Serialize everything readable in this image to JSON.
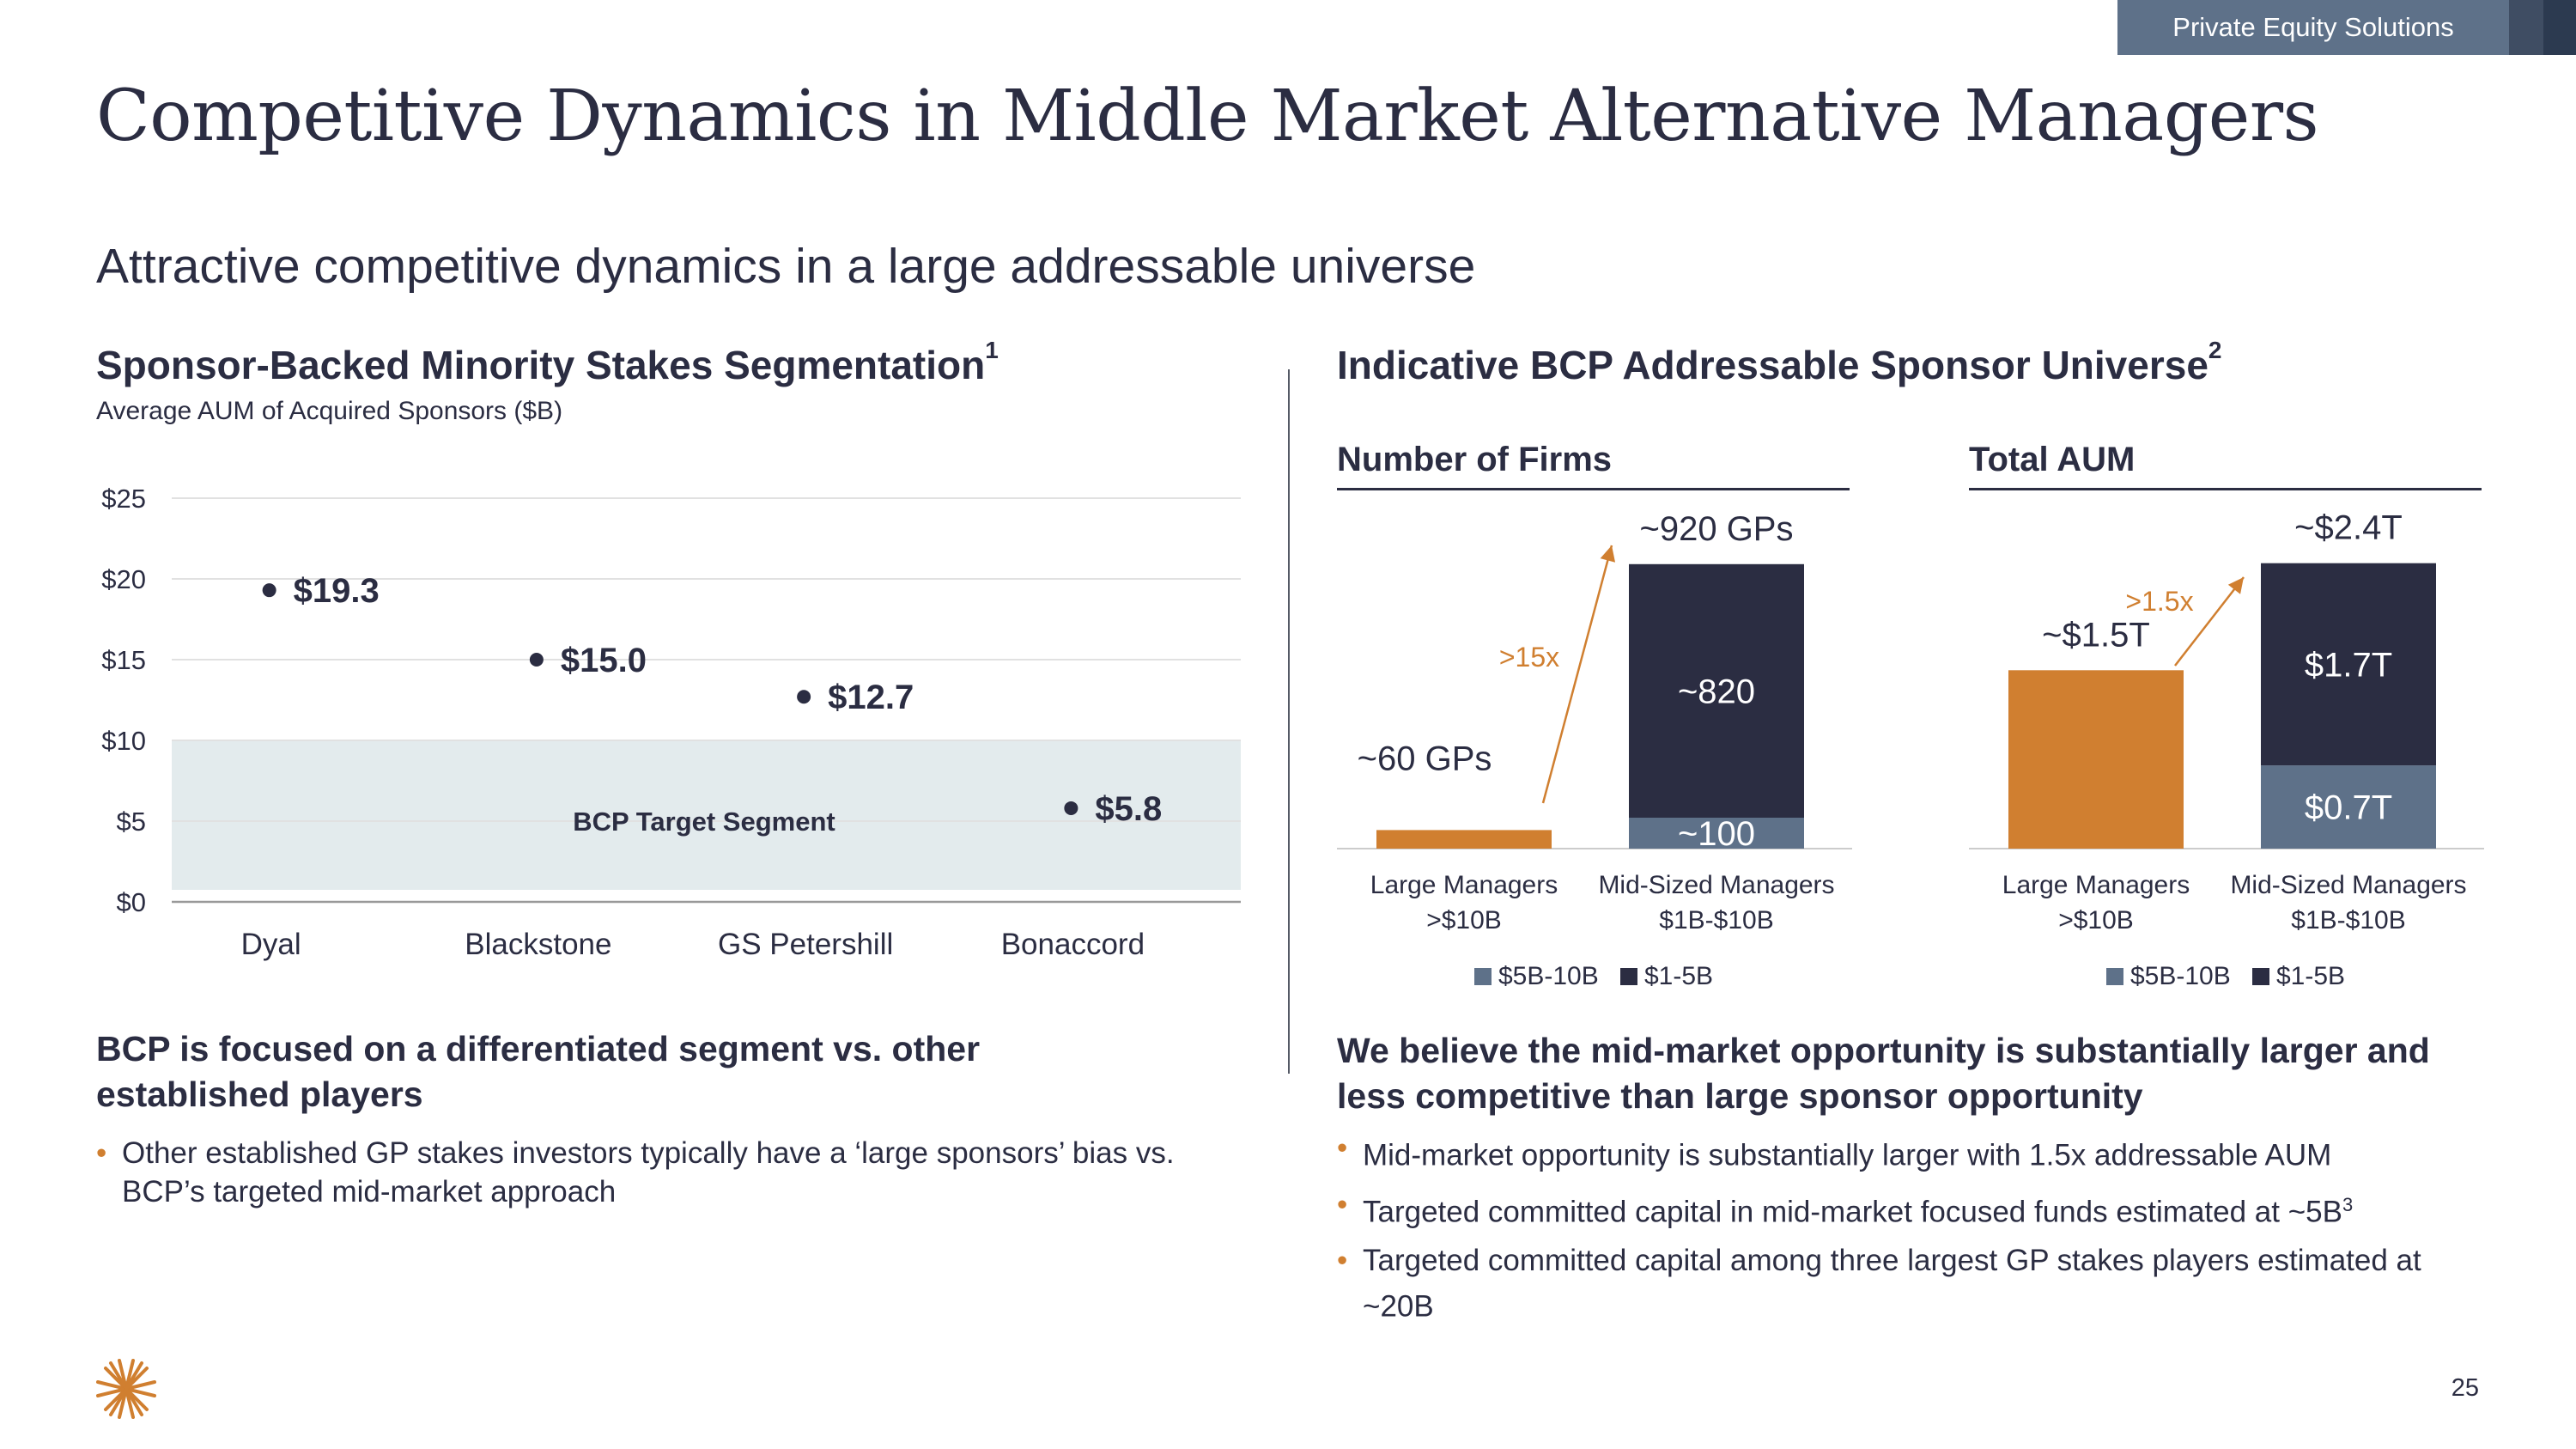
{
  "header": {
    "tag": "Private Equity Solutions",
    "title": "Competitive Dynamics in Middle Market Alternative Managers",
    "subtitle": "Attractive competitive dynamics in a large addressable universe"
  },
  "left_panel": {
    "heading": "Sponsor-Backed Minority Stakes Segmentation",
    "heading_sup": "1",
    "note": "Average AUM of Acquired Sponsors ($B)",
    "bullet_heading": "BCP is focused on a differentiated segment vs. other established players",
    "bullets": [
      "Other established GP stakes investors typically have a ‘large sponsors’ bias vs. BCP’s targeted mid-market approach"
    ]
  },
  "right_panel": {
    "heading": "Indicative BCP Addressable Sponsor Universe",
    "heading_sup": "2",
    "firms_title": "Number of Firms",
    "aum_title": "Total AUM",
    "bullet_heading": "We believe the mid-market opportunity is substantially larger and less competitive than large sponsor opportunity",
    "bullets": [
      {
        "text": "Mid-market opportunity is substantially larger with 1.5x addressable AUM",
        "sup": ""
      },
      {
        "text": "Targeted committed capital in mid-market focused funds estimated at ~5B",
        "sup": "3"
      },
      {
        "text": "Targeted committed capital among three largest GP stakes players estimated at ~20B",
        "sup": ""
      }
    ]
  },
  "colors": {
    "orange": "#d07f30",
    "navy": "#2b2d42",
    "slate": "#5e7189",
    "band": "#e3ebed",
    "grid": "#e1e1e1"
  },
  "chart_data": [
    {
      "type": "scatter",
      "title": "Sponsor-Backed Minority Stakes Segmentation",
      "ylabel": "Average AUM of Acquired Sponsors ($B)",
      "categories": [
        "Dyal",
        "Blackstone",
        "GS Petershill",
        "Bonaccord"
      ],
      "values": [
        19.3,
        15.0,
        12.7,
        5.8
      ],
      "value_labels": [
        "$19.3",
        "$15.0",
        "$12.7",
        "$5.8"
      ],
      "ylim": [
        0,
        25
      ],
      "y_ticks": [
        0,
        5,
        10,
        15,
        20,
        25
      ],
      "y_tick_labels": [
        "$0",
        "$5",
        "$10",
        "$15",
        "$20",
        "$25"
      ],
      "band": {
        "from": 0,
        "to": 10,
        "label": "BCP Target Segment"
      },
      "grid": true
    },
    {
      "type": "bar",
      "title": "Number of Firms",
      "categories": [
        "Large Managers\n>$10B",
        "Mid-Sized Managers\n$1B-$10B"
      ],
      "series": [
        {
          "name": "$5B-10B",
          "values": [
            0,
            100
          ],
          "labels": [
            "",
            "~100"
          ]
        },
        {
          "name": "$1-5B",
          "values": [
            0,
            820
          ],
          "labels": [
            "",
            "~820"
          ]
        },
        {
          "name": "Large",
          "values": [
            60,
            0
          ],
          "labels": [
            "",
            ""
          ]
        }
      ],
      "totals": [
        "~60 GPs",
        "~920 GPs"
      ],
      "total_values": [
        60,
        920
      ],
      "multiplier": ">15x",
      "legend": [
        "$5B-10B",
        "$1-5B"
      ],
      "ylim": [
        0,
        1000
      ]
    },
    {
      "type": "bar",
      "title": "Total AUM",
      "categories": [
        "Large Managers\n>$10B",
        "Mid-Sized Managers\n$1B-$10B"
      ],
      "series": [
        {
          "name": "$5B-10B",
          "values": [
            0,
            0.7
          ],
          "labels": [
            "",
            "$0.7T"
          ]
        },
        {
          "name": "$1-5B",
          "values": [
            0,
            1.7
          ],
          "labels": [
            "",
            "$1.7T"
          ]
        },
        {
          "name": "Large",
          "values": [
            1.5,
            0
          ],
          "labels": [
            "",
            ""
          ]
        }
      ],
      "totals": [
        "~$1.5T",
        "~$2.4T"
      ],
      "total_values": [
        1.5,
        2.4
      ],
      "multiplier": ">1.5x",
      "legend": [
        "$5B-10B",
        "$1-5B"
      ],
      "ylim": [
        0,
        2.6
      ]
    }
  ],
  "footer": {
    "page_number": "25"
  }
}
